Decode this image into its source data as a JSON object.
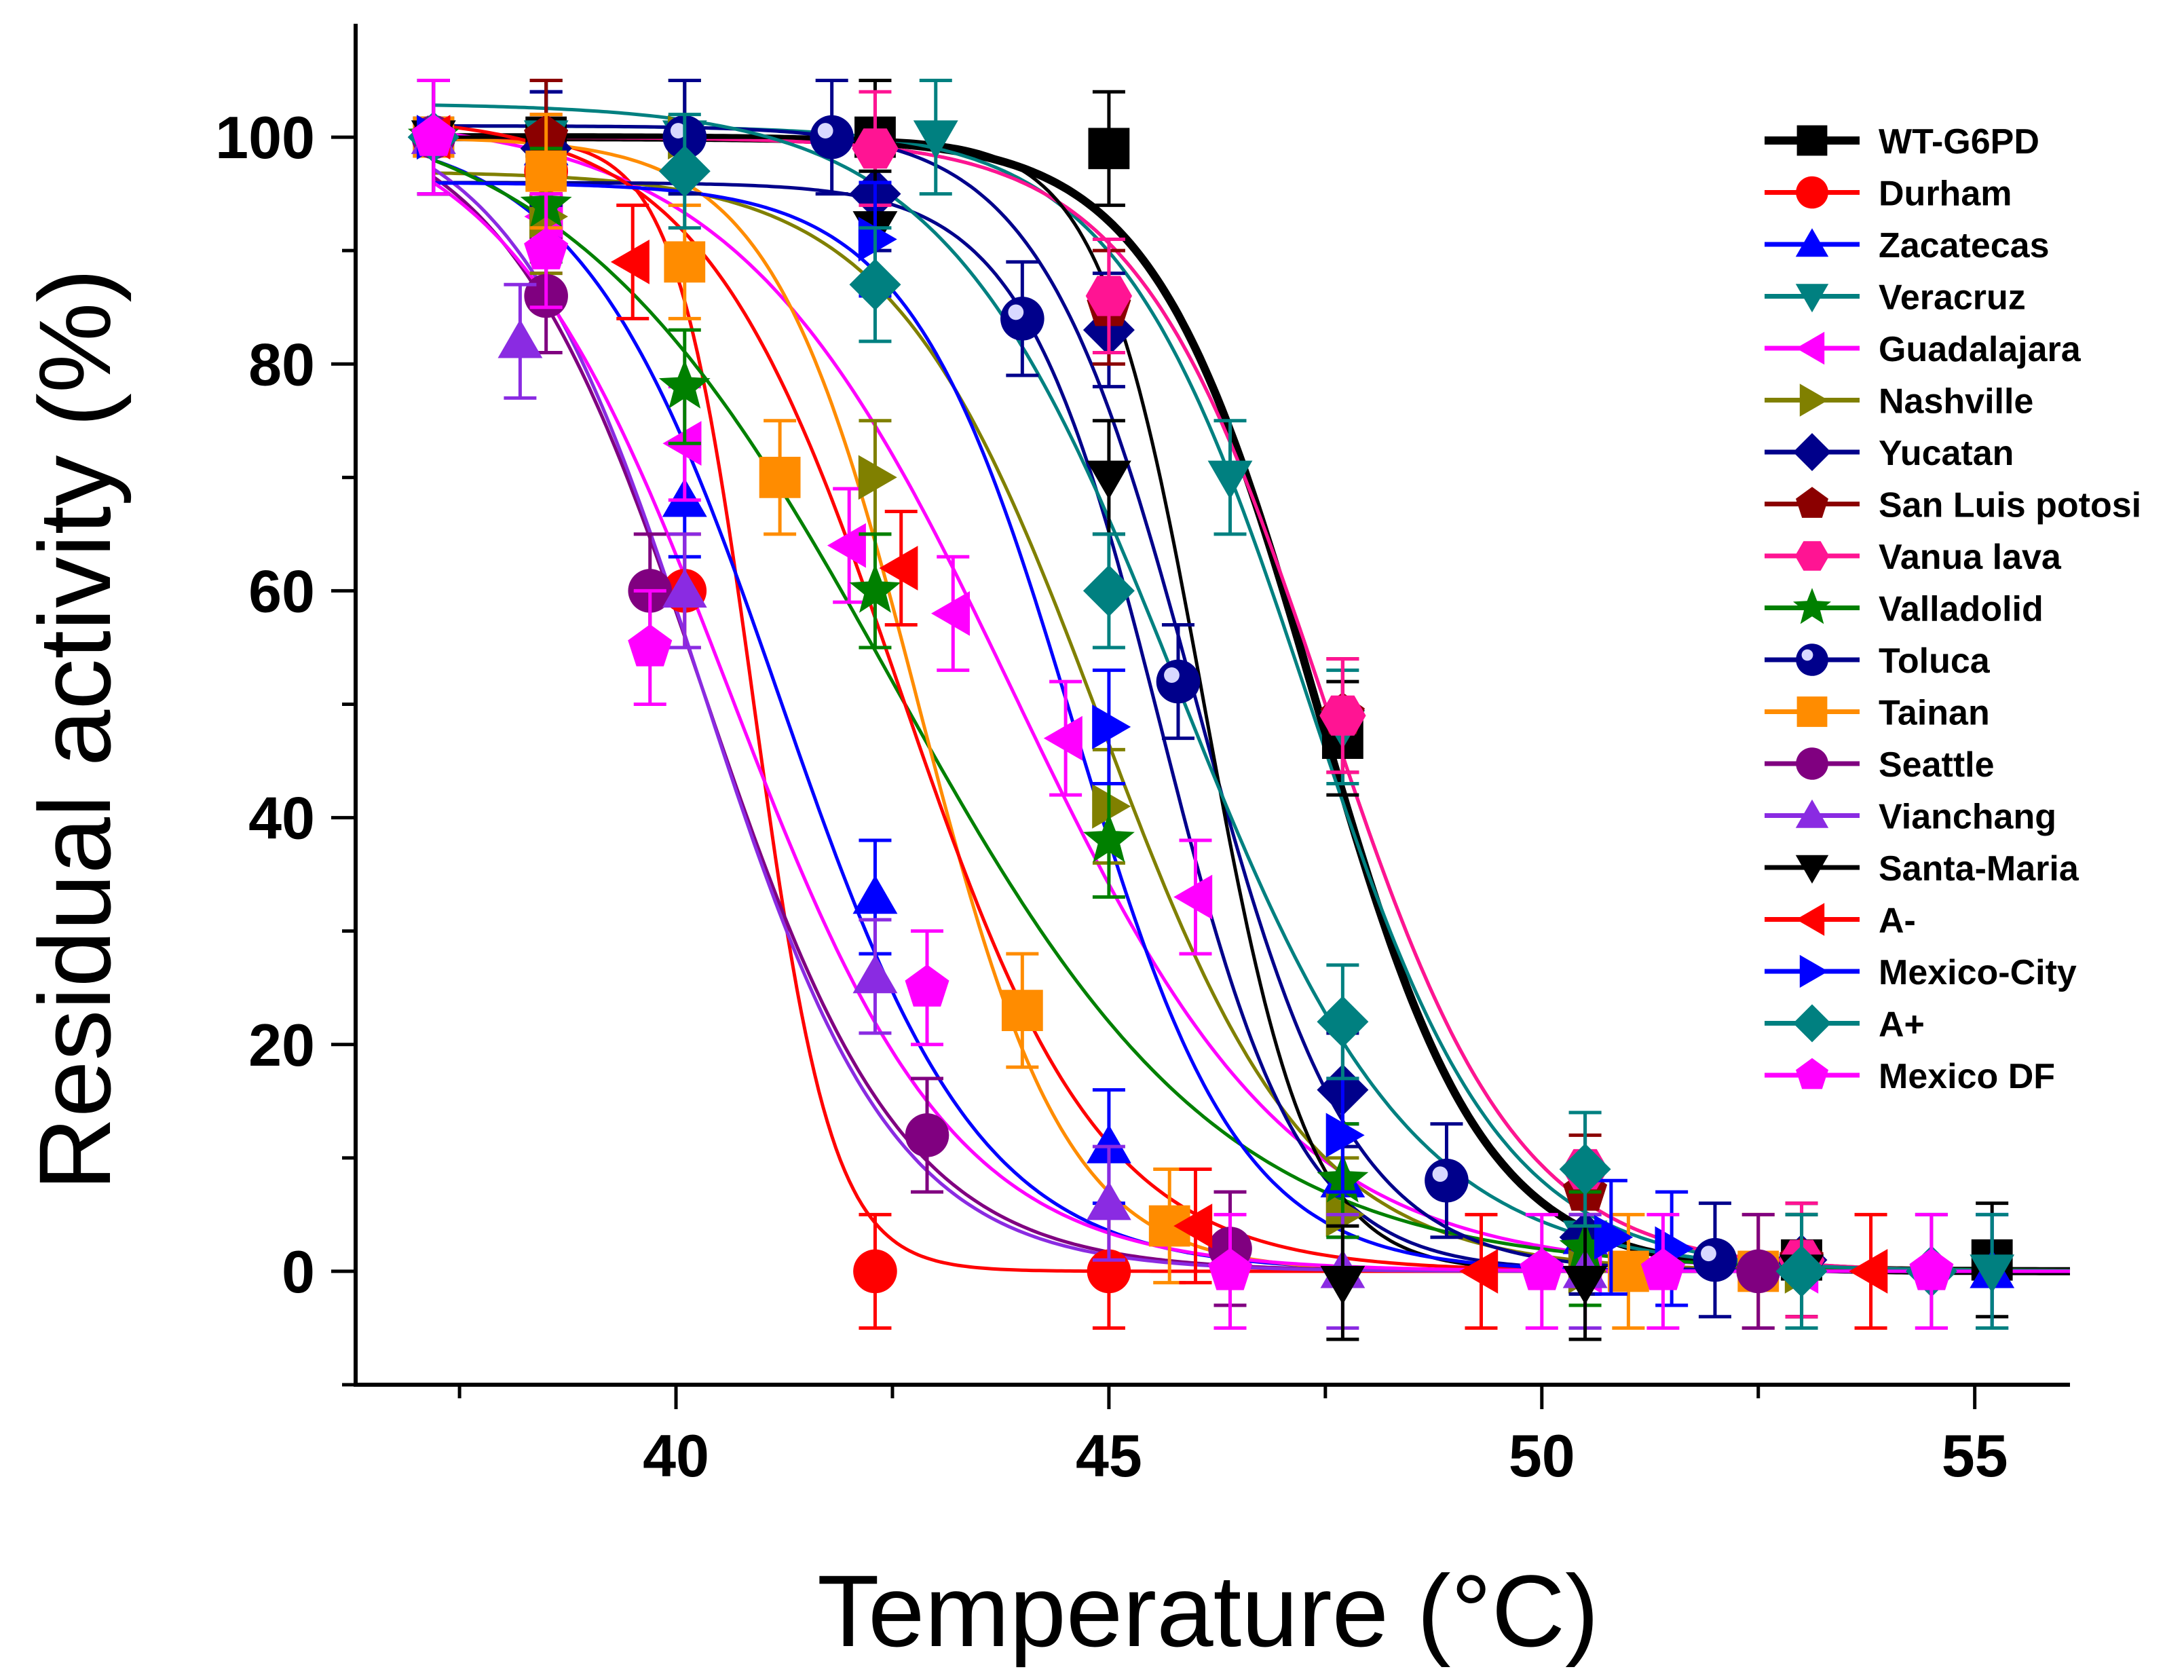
{
  "chart_data": {
    "type": "line",
    "title": "",
    "xlabel": "Temperature (°C)",
    "ylabel": "Residual activity (%)",
    "xlim": [
      36.3,
      56.1
    ],
    "ylim": [
      -10,
      110
    ],
    "xticks": [
      40,
      45,
      50,
      55
    ],
    "yticks": [
      0,
      20,
      40,
      60,
      80,
      100
    ],
    "legend_position": "top-right",
    "series": [
      {
        "name": "WT-G6PD",
        "color": "#000000",
        "marker": "square",
        "bold": true,
        "curve": {
          "tm": 47.4,
          "k": 0.95,
          "top": 100
        },
        "points": [
          [
            37.2,
            100
          ],
          [
            38.5,
            100
          ],
          [
            42.3,
            100
          ],
          [
            45.0,
            99
          ],
          [
            47.7,
            47
          ],
          [
            53.0,
            1
          ],
          [
            55.2,
            1
          ]
        ]
      },
      {
        "name": "Durham",
        "color": "#ff0000",
        "marker": "circle",
        "curve": {
          "tm": 40.9,
          "k": 0.45,
          "top": 100
        },
        "points": [
          [
            37.2,
            100
          ],
          [
            38.5,
            97
          ],
          [
            40.1,
            60
          ],
          [
            42.3,
            0
          ],
          [
            45.0,
            0
          ]
        ]
      },
      {
        "name": "Zacatecas",
        "color": "#0000ff",
        "marker": "triangle-up",
        "curve": {
          "tm": 41.2,
          "k": 1.15,
          "top": 101
        },
        "points": [
          [
            37.2,
            100
          ],
          [
            38.5,
            99
          ],
          [
            40.1,
            68
          ],
          [
            42.3,
            33
          ],
          [
            45.0,
            11
          ],
          [
            47.7,
            8
          ],
          [
            50.5,
            3
          ],
          [
            55.2,
            0
          ]
        ]
      },
      {
        "name": "Veracruz",
        "color": "#008080",
        "marker": "triangle-down",
        "curve": {
          "tm": 47.3,
          "k": 1.1,
          "top": 101
        },
        "points": [
          [
            37.2,
            100
          ],
          [
            38.5,
            100
          ],
          [
            40.1,
            100
          ],
          [
            43.0,
            100
          ],
          [
            46.4,
            70
          ],
          [
            47.7,
            48
          ],
          [
            50.5,
            3
          ],
          [
            53.0,
            0
          ],
          [
            55.2,
            0
          ]
        ]
      },
      {
        "name": "Guadalajara",
        "color": "#ff00ff",
        "marker": "triangle-left",
        "curve": {
          "tm": 43.9,
          "k": 1.6,
          "top": 102
        },
        "points": [
          [
            37.2,
            100
          ],
          [
            38.5,
            93
          ],
          [
            40.1,
            73
          ],
          [
            42.0,
            64
          ],
          [
            43.2,
            58
          ],
          [
            44.5,
            47
          ],
          [
            46.0,
            33
          ],
          [
            50.5,
            0
          ],
          [
            53.0,
            0
          ]
        ]
      },
      {
        "name": "Nashville",
        "color": "#808000",
        "marker": "triangle-right",
        "curve": {
          "tm": 44.9,
          "k": 1.2,
          "top": 97
        },
        "points": [
          [
            37.2,
            100
          ],
          [
            38.5,
            93
          ],
          [
            40.1,
            100
          ],
          [
            42.3,
            70
          ],
          [
            45.0,
            41
          ],
          [
            47.7,
            5
          ],
          [
            50.5,
            0
          ],
          [
            53.0,
            0
          ]
        ]
      },
      {
        "name": "Yucatan",
        "color": "#00008b",
        "marker": "diamond",
        "curve": {
          "tm": 45.6,
          "k": 0.8,
          "top": 96
        },
        "points": [
          [
            37.2,
            100
          ],
          [
            38.5,
            99
          ],
          [
            42.3,
            95
          ],
          [
            45.0,
            83
          ],
          [
            47.7,
            16
          ],
          [
            50.5,
            3
          ],
          [
            53.0,
            1
          ]
        ]
      },
      {
        "name": "San Luis potosi",
        "color": "#8b0000",
        "marker": "pentagon",
        "curve": {
          "tm": 47.5,
          "k": 1.1,
          "top": 100
        },
        "points": [
          [
            37.2,
            100
          ],
          [
            38.5,
            100
          ],
          [
            45.0,
            85
          ],
          [
            47.7,
            49
          ],
          [
            50.5,
            7
          ],
          [
            53.0,
            1
          ]
        ]
      },
      {
        "name": "Vanua lava",
        "color": "#ff1493",
        "marker": "hexagon",
        "curve": {
          "tm": 47.5,
          "k": 1.1,
          "top": 100
        },
        "points": [
          [
            37.2,
            100
          ],
          [
            42.3,
            99
          ],
          [
            45.0,
            86
          ],
          [
            47.7,
            49
          ],
          [
            50.5,
            9
          ],
          [
            53.0,
            1
          ]
        ]
      },
      {
        "name": "Valladolid",
        "color": "#008000",
        "marker": "star",
        "curve": {
          "tm": 42.5,
          "k": 1.9,
          "top": 104
        },
        "points": [
          [
            37.2,
            100
          ],
          [
            38.5,
            94
          ],
          [
            40.1,
            78
          ],
          [
            42.3,
            60
          ],
          [
            45.0,
            38
          ],
          [
            47.7,
            8
          ],
          [
            50.5,
            2
          ]
        ]
      },
      {
        "name": "Toluca",
        "color": "#00008b",
        "marker": "ball",
        "curve": {
          "tm": 46.0,
          "k": 0.9,
          "top": 101
        },
        "points": [
          [
            37.2,
            100
          ],
          [
            40.1,
            100
          ],
          [
            41.8,
            100
          ],
          [
            44.0,
            84
          ],
          [
            45.8,
            52
          ],
          [
            48.9,
            8
          ],
          [
            52.0,
            1
          ]
        ]
      },
      {
        "name": "Tainan",
        "color": "#ff8c00",
        "marker": "square",
        "curve": {
          "tm": 42.8,
          "k": 0.85,
          "top": 100
        },
        "points": [
          [
            37.2,
            100
          ],
          [
            38.5,
            97
          ],
          [
            40.1,
            89
          ],
          [
            41.2,
            70
          ],
          [
            44.0,
            23
          ],
          [
            45.7,
            4
          ],
          [
            51.0,
            0
          ],
          [
            52.5,
            0
          ]
        ]
      },
      {
        "name": "Seattle",
        "color": "#800080",
        "marker": "circle",
        "curve": {
          "tm": 40.3,
          "k": 1.15,
          "top": 103
        },
        "points": [
          [
            37.2,
            100
          ],
          [
            38.5,
            86
          ],
          [
            39.7,
            60
          ],
          [
            42.9,
            12
          ],
          [
            46.4,
            2
          ],
          [
            52.5,
            0
          ]
        ]
      },
      {
        "name": "Vianchang",
        "color": "#8a2be2",
        "marker": "triangle-up",
        "curve": {
          "tm": 40.3,
          "k": 1.1,
          "top": 103
        },
        "points": [
          [
            37.2,
            100
          ],
          [
            38.2,
            82
          ],
          [
            40.1,
            60
          ],
          [
            42.3,
            26
          ],
          [
            45.0,
            6
          ],
          [
            47.7,
            0
          ],
          [
            50.5,
            0
          ]
        ]
      },
      {
        "name": "Santa-Maria",
        "color": "#000000",
        "marker": "triangle-down",
        "curve": {
          "tm": 46.1,
          "k": 0.6,
          "top": 100
        },
        "points": [
          [
            37.2,
            100
          ],
          [
            42.3,
            92
          ],
          [
            45.0,
            70
          ],
          [
            47.7,
            -1
          ],
          [
            50.5,
            -1
          ],
          [
            53.0,
            0
          ]
        ]
      },
      {
        "name": "A-",
        "color": "#ff0000",
        "marker": "triangle-left",
        "curve": {
          "tm": 42.6,
          "k": 1.15,
          "top": 102
        },
        "points": [
          [
            37.2,
            100
          ],
          [
            39.5,
            89
          ],
          [
            42.6,
            62
          ],
          [
            46.0,
            4
          ],
          [
            49.3,
            0
          ],
          [
            53.8,
            0
          ]
        ]
      },
      {
        "name": "Mexico-City",
        "color": "#0000ff",
        "marker": "triangle-right",
        "curve": {
          "tm": 44.6,
          "k": 0.95,
          "top": 96
        },
        "points": [
          [
            37.2,
            100
          ],
          [
            42.3,
            91
          ],
          [
            45.0,
            48
          ],
          [
            47.7,
            12
          ],
          [
            50.8,
            3
          ],
          [
            51.5,
            2
          ]
        ]
      },
      {
        "name": "A+",
        "color": "#008080",
        "marker": "diamond",
        "curve": {
          "tm": 45.8,
          "k": 1.35,
          "top": 103
        },
        "points": [
          [
            37.2,
            100
          ],
          [
            40.1,
            97
          ],
          [
            42.3,
            87
          ],
          [
            45.0,
            60
          ],
          [
            47.7,
            22
          ],
          [
            50.5,
            9
          ],
          [
            53.0,
            0
          ],
          [
            54.5,
            0
          ]
        ]
      },
      {
        "name": "Mexico DF",
        "color": "#ff00ff",
        "marker": "pentagon",
        "curve": {
          "tm": 40.6,
          "k": 1.3,
          "top": 103
        },
        "points": [
          [
            37.2,
            100
          ],
          [
            38.5,
            90
          ],
          [
            39.7,
            55
          ],
          [
            42.9,
            25
          ],
          [
            46.4,
            0
          ],
          [
            50.0,
            0
          ],
          [
            51.4,
            0
          ],
          [
            54.5,
            0
          ]
        ]
      }
    ]
  }
}
